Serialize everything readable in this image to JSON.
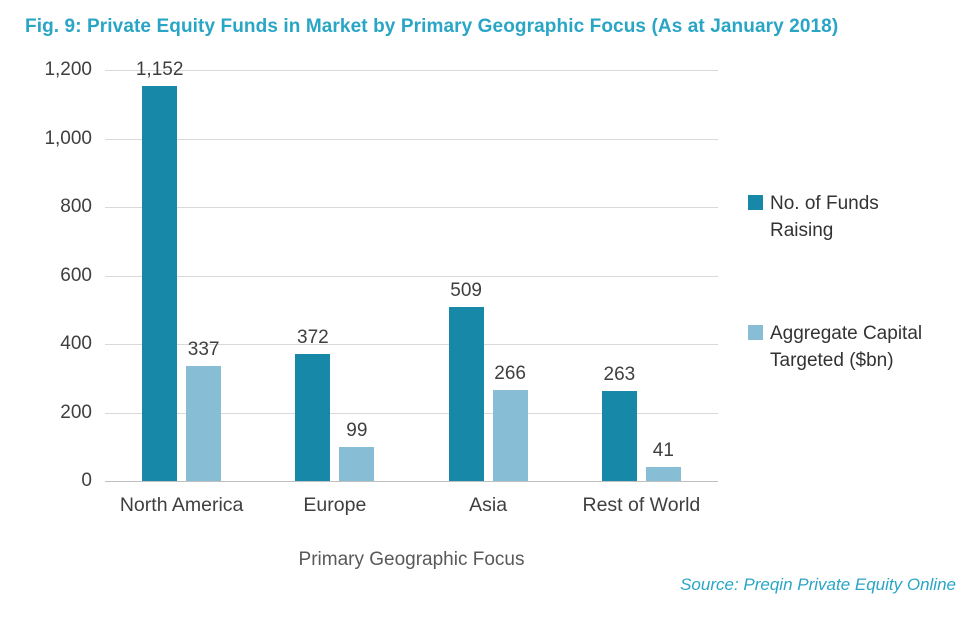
{
  "title": "Fig. 9: Private Equity Funds in Market by Primary Geographic Focus (As at January 2018)",
  "source": "Source: Preqin Private Equity Online",
  "colors": {
    "accent_teal": "#29a5c6",
    "series_funds": "#1788a8",
    "series_capital": "#87bdd5",
    "gridline": "#d9d9d9",
    "axis_line": "#bfbfbf",
    "tick_text": "#3f3f3f",
    "axis_title_text": "#595959"
  },
  "chart_data": {
    "type": "bar",
    "categories": [
      "North America",
      "Europe",
      "Asia",
      "Rest of World"
    ],
    "series": [
      {
        "name": "No. of Funds Raising",
        "values": [
          1152,
          372,
          509,
          263
        ],
        "color": "#1788a8"
      },
      {
        "name": "Aggregate Capital Targeted ($bn)",
        "values": [
          337,
          99,
          266,
          41
        ],
        "color": "#87bdd5"
      }
    ],
    "value_labels": [
      [
        "1,152",
        "372",
        "509",
        "263"
      ],
      [
        "337",
        "99",
        "266",
        "41"
      ]
    ],
    "title": "Fig. 9: Private Equity Funds in Market by Primary Geographic Focus (As at January 2018)",
    "xlabel": "Primary Geographic Focus",
    "ylabel": "",
    "ylim": [
      0,
      1200
    ],
    "ytick_step": 200,
    "ytick_labels": [
      "0",
      "200",
      "400",
      "600",
      "800",
      "1,000",
      "1,200"
    ],
    "grid": true,
    "legend_position": "right"
  },
  "legend": {
    "items": [
      {
        "label": "No. of Funds Raising",
        "color": "#1788a8"
      },
      {
        "label": "Aggregate Capital Targeted ($bn)",
        "color": "#87bdd5"
      }
    ]
  }
}
